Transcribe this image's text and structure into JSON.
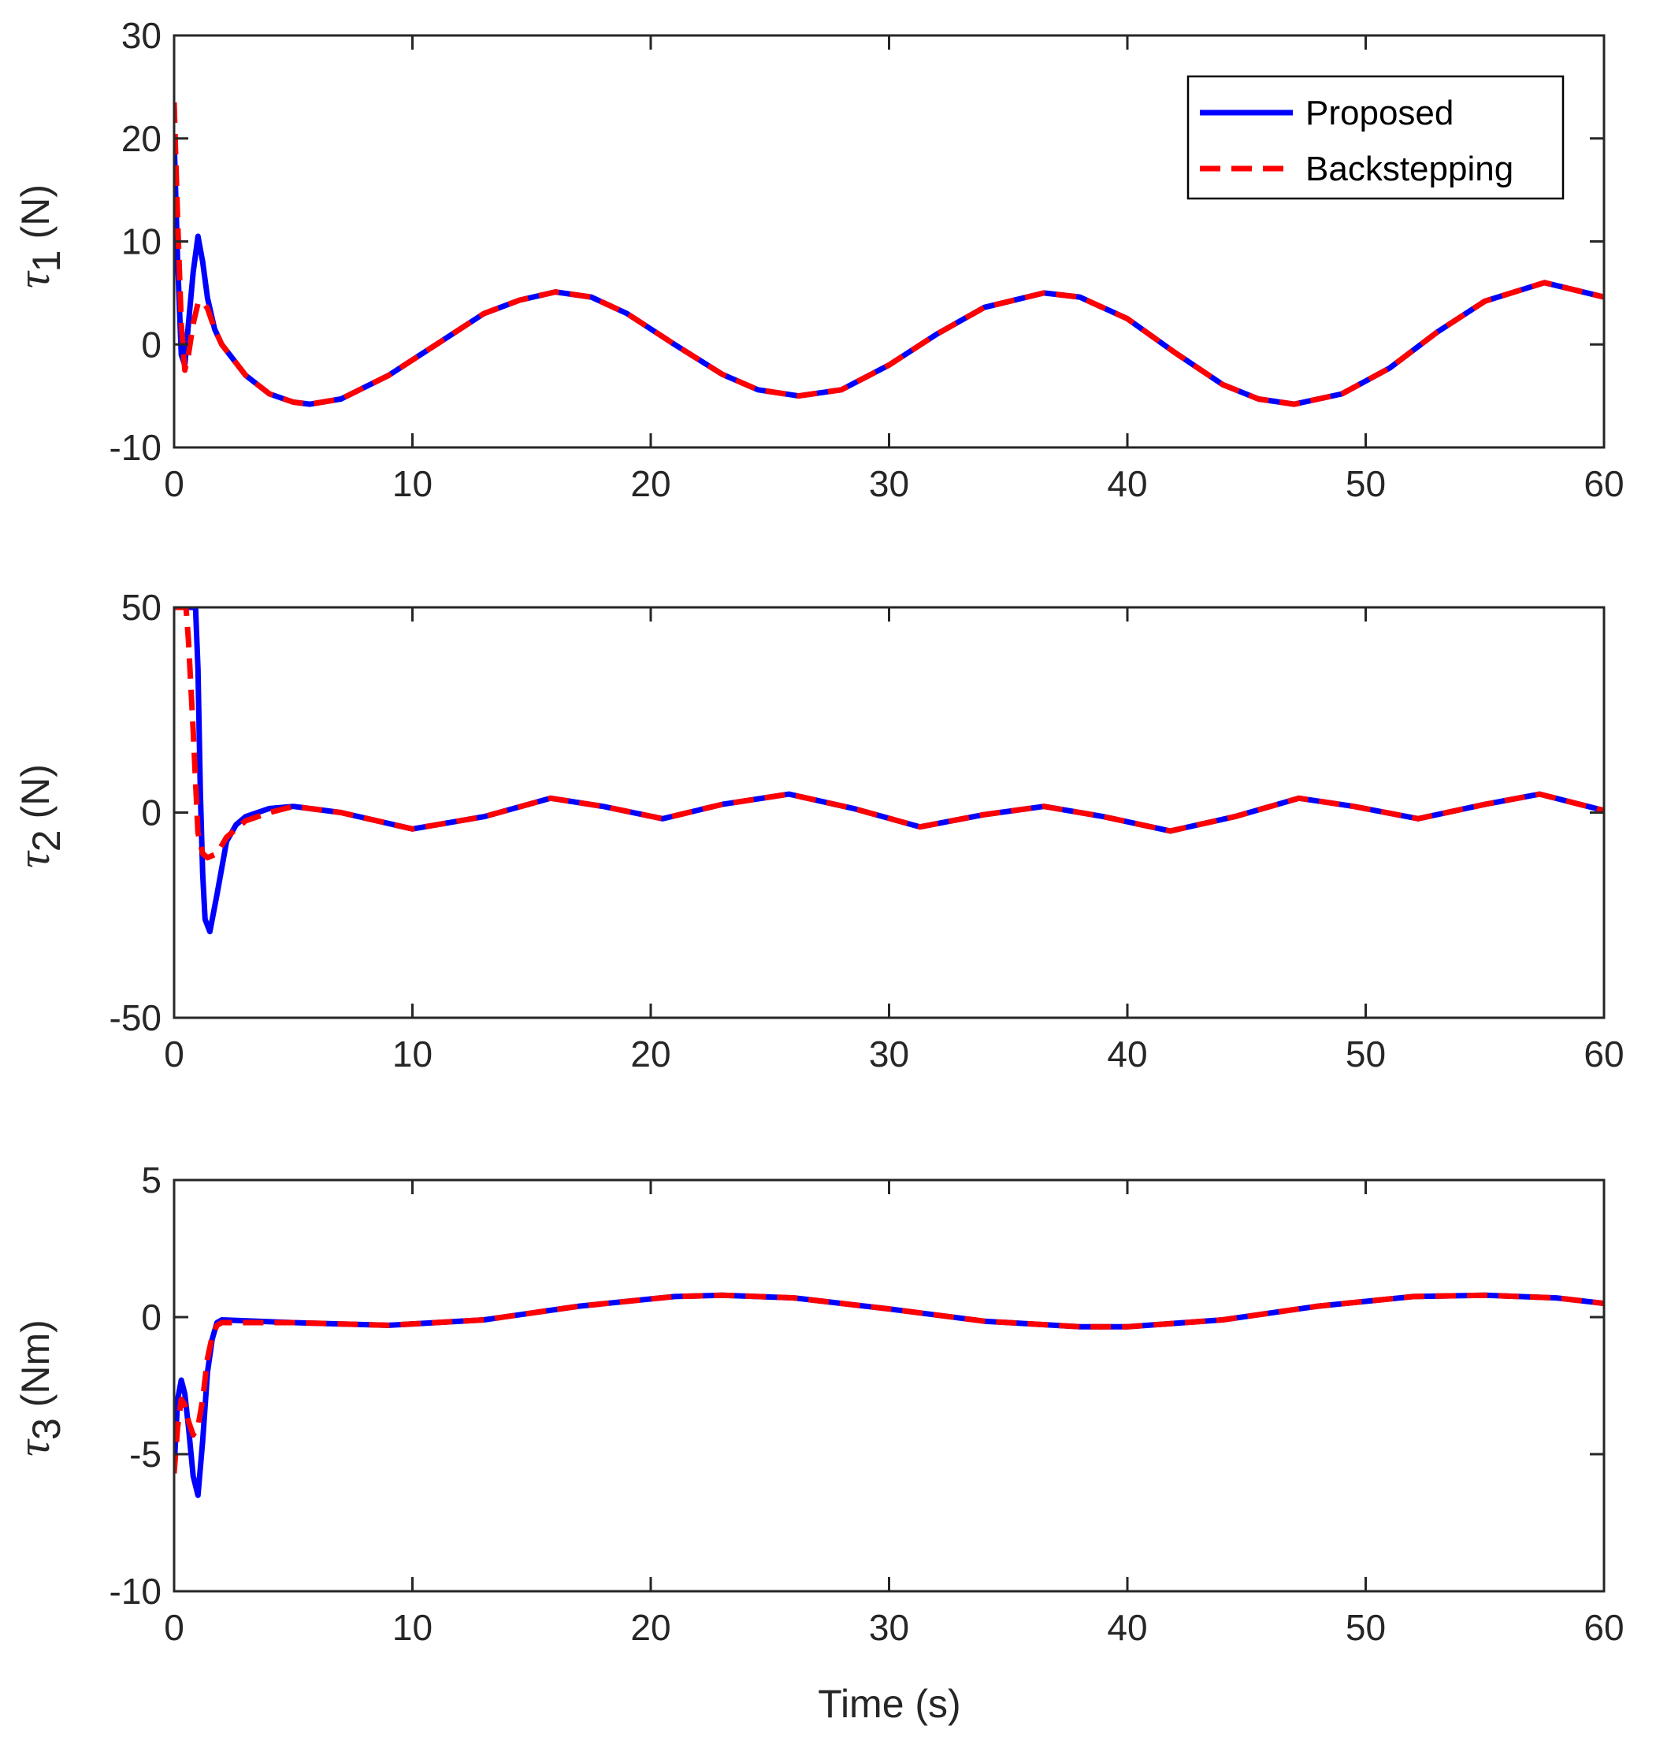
{
  "colors": {
    "proposed": "#0000FF",
    "backstepping": "#FF0000",
    "axis": "#262626"
  },
  "legend": {
    "entries": [
      {
        "label": "Proposed",
        "style": "solid",
        "color": "#0000FF"
      },
      {
        "label": "Backstepping",
        "style": "dashed",
        "color": "#FF0000"
      }
    ],
    "placement": "top-right of top subplot"
  },
  "xlabel": "Time (s)",
  "chart_data": [
    {
      "type": "line",
      "ylabel_symbol": "τ",
      "ylabel_sub": "1",
      "ylabel_unit": "(N)",
      "xlim": [
        0,
        60
      ],
      "ylim": [
        -10,
        30
      ],
      "xticks": [
        0,
        10,
        20,
        30,
        40,
        50,
        60
      ],
      "yticks": [
        -10,
        0,
        10,
        20,
        30
      ],
      "series": [
        {
          "name": "Proposed",
          "x": [
            0,
            0.15,
            0.3,
            0.45,
            0.6,
            0.8,
            1.0,
            1.2,
            1.4,
            1.7,
            2,
            3,
            4,
            5,
            5.7,
            7,
            9,
            11,
            13,
            14.5,
            16,
            17.5,
            19,
            21,
            23,
            24.5,
            26.2,
            28,
            30,
            32,
            34,
            36.5,
            38,
            40,
            42,
            44,
            45.5,
            47,
            49,
            51,
            53,
            55,
            57.5,
            60
          ],
          "y": [
            20,
            8,
            -1,
            -2,
            2,
            7,
            10.5,
            8,
            4.5,
            1.5,
            0,
            -3,
            -4.8,
            -5.6,
            -5.8,
            -5.3,
            -3,
            0,
            3,
            4.3,
            5.1,
            4.6,
            3,
            0,
            -2.9,
            -4.4,
            -5,
            -4.4,
            -2,
            1,
            3.6,
            5,
            4.6,
            2.5,
            -0.8,
            -3.9,
            -5.3,
            -5.8,
            -4.8,
            -2.3,
            1.2,
            4.2,
            6,
            4.6
          ]
        },
        {
          "name": "Backstepping",
          "x": [
            0,
            0.15,
            0.3,
            0.45,
            0.6,
            0.8,
            1.0,
            1.2,
            1.4,
            1.7,
            2,
            3,
            4,
            5,
            5.7,
            7,
            9,
            11,
            13,
            14.5,
            16,
            17.5,
            19,
            21,
            23,
            24.5,
            26.2,
            28,
            30,
            32,
            34,
            36.5,
            38,
            40,
            42,
            44,
            45.5,
            47,
            49,
            51,
            53,
            55,
            57.5,
            60
          ],
          "y": [
            23.5,
            12,
            2,
            -2.5,
            -1,
            2,
            4,
            4.2,
            3.5,
            1.5,
            0,
            -3,
            -4.8,
            -5.6,
            -5.8,
            -5.3,
            -3,
            0,
            3,
            4.3,
            5.1,
            4.6,
            3,
            0,
            -2.9,
            -4.4,
            -5,
            -4.4,
            -2,
            1,
            3.6,
            5,
            4.6,
            2.5,
            -0.8,
            -3.9,
            -5.3,
            -5.8,
            -4.8,
            -2.3,
            1.2,
            4.2,
            6,
            4.6
          ]
        }
      ]
    },
    {
      "type": "line",
      "ylabel_symbol": "τ",
      "ylabel_sub": "2",
      "ylabel_unit": "(N)",
      "xlim": [
        0,
        60
      ],
      "ylim": [
        -50,
        50
      ],
      "xticks": [
        0,
        10,
        20,
        30,
        40,
        50,
        60
      ],
      "yticks": [
        -50,
        0,
        50
      ],
      "series": [
        {
          "name": "Proposed",
          "x": [
            0,
            0.9,
            1.0,
            1.1,
            1.2,
            1.3,
            1.5,
            1.8,
            2.2,
            2.6,
            3,
            4,
            5,
            7,
            10,
            13,
            15.8,
            18,
            20.5,
            23,
            25.8,
            28.5,
            31.3,
            34,
            36.5,
            39,
            41.8,
            44.5,
            47.2,
            49.5,
            52.2,
            55,
            57.3,
            60
          ],
          "y": [
            50,
            50,
            35,
            5,
            -15,
            -26,
            -29,
            -20,
            -7,
            -3,
            -1,
            1,
            1.5,
            0,
            -4,
            -1,
            3.5,
            1.5,
            -1.5,
            2,
            4.5,
            1,
            -3.5,
            -0.5,
            1.5,
            -1,
            -4.5,
            -1,
            3.5,
            1.5,
            -1.5,
            2,
            4.5,
            0.5
          ]
        },
        {
          "name": "Backstepping",
          "x": [
            0,
            0.5,
            0.6,
            0.8,
            1.0,
            1.2,
            1.4,
            1.8,
            2.2,
            3,
            4,
            5,
            7,
            10,
            13,
            15.8,
            18,
            20.5,
            23,
            25.8,
            28.5,
            31.3,
            34,
            36.5,
            39,
            41.8,
            44.5,
            47.2,
            49.5,
            52.2,
            55,
            57.3,
            60
          ],
          "y": [
            50,
            50,
            42,
            20,
            -5,
            -10,
            -11,
            -10,
            -6,
            -2,
            0,
            1.5,
            0,
            -4,
            -1,
            3.5,
            1.5,
            -1.5,
            2,
            4.5,
            1,
            -3.5,
            -0.5,
            1.5,
            -1,
            -4.5,
            -1,
            3.5,
            1.5,
            -1.5,
            2,
            4.5,
            0.5
          ]
        }
      ]
    },
    {
      "type": "line",
      "ylabel_symbol": "τ",
      "ylabel_sub": "3",
      "ylabel_unit": "(Nm)",
      "xlim": [
        0,
        60
      ],
      "ylim": [
        -10,
        5
      ],
      "xticks": [
        0,
        10,
        20,
        30,
        40,
        50,
        60
      ],
      "yticks": [
        -10,
        -5,
        0,
        5
      ],
      "series": [
        {
          "name": "Proposed",
          "x": [
            0,
            0.15,
            0.3,
            0.45,
            0.6,
            0.8,
            1.0,
            1.2,
            1.4,
            1.6,
            1.8,
            2,
            5,
            9,
            13,
            17,
            21,
            23,
            26,
            30,
            34,
            38,
            40,
            44,
            48,
            52,
            55,
            58,
            60
          ],
          "y": [
            -5.5,
            -3,
            -2.3,
            -2.8,
            -4,
            -5.8,
            -6.5,
            -4.5,
            -2,
            -0.8,
            -0.2,
            -0.1,
            -0.2,
            -0.3,
            -0.1,
            0.4,
            0.75,
            0.8,
            0.7,
            0.3,
            -0.15,
            -0.35,
            -0.35,
            -0.1,
            0.4,
            0.75,
            0.8,
            0.7,
            0.5
          ]
        },
        {
          "name": "Backstepping",
          "x": [
            0,
            0.15,
            0.3,
            0.45,
            0.6,
            0.8,
            1.0,
            1.2,
            1.4,
            1.6,
            1.8,
            2,
            5,
            9,
            13,
            17,
            21,
            23,
            26,
            30,
            34,
            38,
            40,
            44,
            48,
            52,
            55,
            58,
            60
          ],
          "y": [
            -5.7,
            -4,
            -3,
            -3.2,
            -3.8,
            -4.3,
            -4,
            -3,
            -1.5,
            -0.7,
            -0.3,
            -0.2,
            -0.2,
            -0.3,
            -0.1,
            0.4,
            0.75,
            0.8,
            0.7,
            0.3,
            -0.15,
            -0.35,
            -0.35,
            -0.1,
            0.4,
            0.75,
            0.8,
            0.7,
            0.5
          ]
        }
      ]
    }
  ]
}
